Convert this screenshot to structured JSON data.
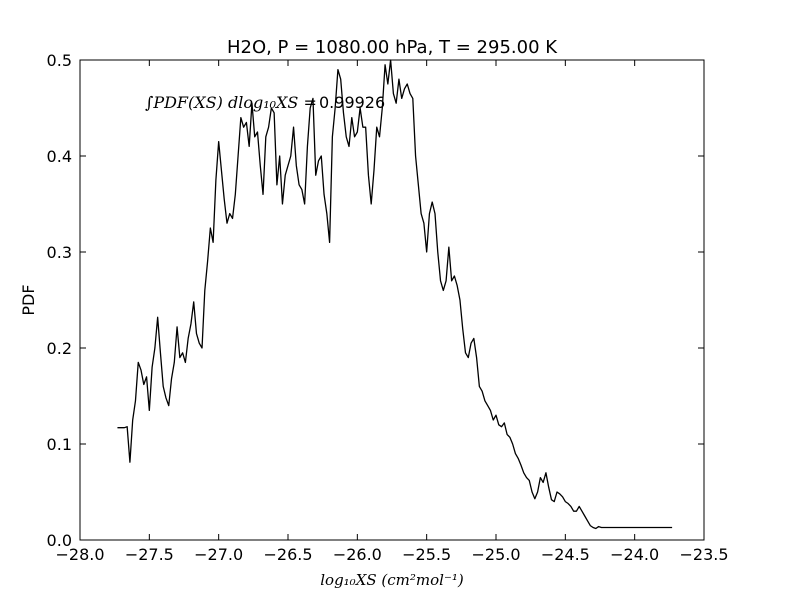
{
  "chart_data": {
    "type": "line",
    "title": "H2O, P = 1080.00 hPa, T = 295.00 K",
    "xlabel": "log₁₀XS (cm²mol⁻¹)",
    "ylabel": "PDF",
    "xlim": [
      -28.0,
      -23.5
    ],
    "ylim": [
      0.0,
      0.5
    ],
    "xticks": [
      -28.0,
      -27.5,
      -27.0,
      -26.5,
      -26.0,
      -25.5,
      -25.0,
      -24.5,
      -24.0,
      -23.5
    ],
    "xtick_labels": [
      "−28.0",
      "−27.5",
      "−27.0",
      "−26.5",
      "−26.0",
      "−25.5",
      "−25.0",
      "−24.5",
      "−24.0",
      "−23.5"
    ],
    "yticks": [
      0.0,
      0.1,
      0.2,
      0.3,
      0.4,
      0.5
    ],
    "ytick_labels": [
      "0.0",
      "0.1",
      "0.2",
      "0.3",
      "0.4",
      "0.5"
    ],
    "grid": false,
    "color": "#000000",
    "annotation": {
      "text_math": "∫PDF(XS) dlog₁₀XS =",
      "value": "0.99926"
    },
    "series": [
      {
        "values": [
          [
            -27.73,
            0.117
          ],
          [
            -27.68,
            0.117
          ],
          [
            -27.66,
            0.118
          ],
          [
            -27.64,
            0.081
          ],
          [
            -27.62,
            0.125
          ],
          [
            -27.6,
            0.145
          ],
          [
            -27.58,
            0.185
          ],
          [
            -27.56,
            0.177
          ],
          [
            -27.54,
            0.162
          ],
          [
            -27.52,
            0.17
          ],
          [
            -27.5,
            0.135
          ],
          [
            -27.48,
            0.18
          ],
          [
            -27.46,
            0.2
          ],
          [
            -27.44,
            0.232
          ],
          [
            -27.42,
            0.195
          ],
          [
            -27.4,
            0.16
          ],
          [
            -27.38,
            0.148
          ],
          [
            -27.36,
            0.14
          ],
          [
            -27.34,
            0.168
          ],
          [
            -27.32,
            0.185
          ],
          [
            -27.3,
            0.222
          ],
          [
            -27.28,
            0.19
          ],
          [
            -27.26,
            0.195
          ],
          [
            -27.24,
            0.185
          ],
          [
            -27.22,
            0.21
          ],
          [
            -27.2,
            0.225
          ],
          [
            -27.18,
            0.248
          ],
          [
            -27.16,
            0.215
          ],
          [
            -27.14,
            0.205
          ],
          [
            -27.12,
            0.2
          ],
          [
            -27.1,
            0.26
          ],
          [
            -27.08,
            0.29
          ],
          [
            -27.06,
            0.325
          ],
          [
            -27.04,
            0.31
          ],
          [
            -27.02,
            0.375
          ],
          [
            -27.0,
            0.415
          ],
          [
            -26.98,
            0.385
          ],
          [
            -26.96,
            0.355
          ],
          [
            -26.94,
            0.33
          ],
          [
            -26.92,
            0.34
          ],
          [
            -26.9,
            0.335
          ],
          [
            -26.88,
            0.36
          ],
          [
            -26.86,
            0.4
          ],
          [
            -26.84,
            0.44
          ],
          [
            -26.82,
            0.43
          ],
          [
            -26.8,
            0.435
          ],
          [
            -26.78,
            0.41
          ],
          [
            -26.76,
            0.455
          ],
          [
            -26.74,
            0.42
          ],
          [
            -26.72,
            0.425
          ],
          [
            -26.7,
            0.39
          ],
          [
            -26.68,
            0.36
          ],
          [
            -26.66,
            0.42
          ],
          [
            -26.64,
            0.43
          ],
          [
            -26.62,
            0.45
          ],
          [
            -26.6,
            0.445
          ],
          [
            -26.58,
            0.37
          ],
          [
            -26.56,
            0.4
          ],
          [
            -26.54,
            0.35
          ],
          [
            -26.52,
            0.38
          ],
          [
            -26.5,
            0.39
          ],
          [
            -26.48,
            0.4
          ],
          [
            -26.46,
            0.43
          ],
          [
            -26.44,
            0.39
          ],
          [
            -26.42,
            0.37
          ],
          [
            -26.4,
            0.365
          ],
          [
            -26.38,
            0.35
          ],
          [
            -26.36,
            0.41
          ],
          [
            -26.34,
            0.45
          ],
          [
            -26.32,
            0.46
          ],
          [
            -26.3,
            0.38
          ],
          [
            -26.28,
            0.395
          ],
          [
            -26.26,
            0.4
          ],
          [
            -26.24,
            0.36
          ],
          [
            -26.22,
            0.34
          ],
          [
            -26.2,
            0.31
          ],
          [
            -26.18,
            0.42
          ],
          [
            -26.16,
            0.45
          ],
          [
            -26.14,
            0.49
          ],
          [
            -26.12,
            0.48
          ],
          [
            -26.1,
            0.445
          ],
          [
            -26.08,
            0.42
          ],
          [
            -26.06,
            0.41
          ],
          [
            -26.04,
            0.44
          ],
          [
            -26.02,
            0.42
          ],
          [
            -26.0,
            0.425
          ],
          [
            -25.98,
            0.45
          ],
          [
            -25.96,
            0.43
          ],
          [
            -25.94,
            0.43
          ],
          [
            -25.92,
            0.38
          ],
          [
            -25.9,
            0.35
          ],
          [
            -25.88,
            0.385
          ],
          [
            -25.86,
            0.43
          ],
          [
            -25.84,
            0.42
          ],
          [
            -25.82,
            0.45
          ],
          [
            -25.8,
            0.495
          ],
          [
            -25.78,
            0.475
          ],
          [
            -25.76,
            0.5
          ],
          [
            -25.74,
            0.465
          ],
          [
            -25.72,
            0.455
          ],
          [
            -25.7,
            0.48
          ],
          [
            -25.68,
            0.46
          ],
          [
            -25.66,
            0.47
          ],
          [
            -25.64,
            0.475
          ],
          [
            -25.62,
            0.465
          ],
          [
            -25.6,
            0.46
          ],
          [
            -25.58,
            0.4
          ],
          [
            -25.56,
            0.37
          ],
          [
            -25.54,
            0.34
          ],
          [
            -25.52,
            0.33
          ],
          [
            -25.5,
            0.3
          ],
          [
            -25.48,
            0.34
          ],
          [
            -25.46,
            0.352
          ],
          [
            -25.44,
            0.34
          ],
          [
            -25.42,
            0.3
          ],
          [
            -25.4,
            0.27
          ],
          [
            -25.38,
            0.26
          ],
          [
            -25.36,
            0.27
          ],
          [
            -25.34,
            0.305
          ],
          [
            -25.32,
            0.27
          ],
          [
            -25.3,
            0.275
          ],
          [
            -25.28,
            0.265
          ],
          [
            -25.26,
            0.25
          ],
          [
            -25.24,
            0.22
          ],
          [
            -25.22,
            0.195
          ],
          [
            -25.2,
            0.19
          ],
          [
            -25.18,
            0.205
          ],
          [
            -25.16,
            0.21
          ],
          [
            -25.14,
            0.19
          ],
          [
            -25.12,
            0.16
          ],
          [
            -25.1,
            0.155
          ],
          [
            -25.08,
            0.145
          ],
          [
            -25.06,
            0.14
          ],
          [
            -25.04,
            0.135
          ],
          [
            -25.02,
            0.125
          ],
          [
            -25.0,
            0.13
          ],
          [
            -24.98,
            0.12
          ],
          [
            -24.96,
            0.118
          ],
          [
            -24.94,
            0.122
          ],
          [
            -24.92,
            0.11
          ],
          [
            -24.9,
            0.107
          ],
          [
            -24.88,
            0.1
          ],
          [
            -24.86,
            0.09
          ],
          [
            -24.84,
            0.085
          ],
          [
            -24.82,
            0.078
          ],
          [
            -24.8,
            0.07
          ],
          [
            -24.78,
            0.065
          ],
          [
            -24.76,
            0.062
          ],
          [
            -24.74,
            0.05
          ],
          [
            -24.72,
            0.043
          ],
          [
            -24.7,
            0.05
          ],
          [
            -24.68,
            0.065
          ],
          [
            -24.66,
            0.06
          ],
          [
            -24.64,
            0.07
          ],
          [
            -24.62,
            0.055
          ],
          [
            -24.6,
            0.042
          ],
          [
            -24.58,
            0.04
          ],
          [
            -24.56,
            0.05
          ],
          [
            -24.54,
            0.048
          ],
          [
            -24.52,
            0.045
          ],
          [
            -24.5,
            0.04
          ],
          [
            -24.48,
            0.038
          ],
          [
            -24.46,
            0.035
          ],
          [
            -24.44,
            0.03
          ],
          [
            -24.42,
            0.03
          ],
          [
            -24.4,
            0.035
          ],
          [
            -24.38,
            0.03
          ],
          [
            -24.36,
            0.025
          ],
          [
            -24.34,
            0.02
          ],
          [
            -24.32,
            0.015
          ],
          [
            -24.3,
            0.013
          ],
          [
            -24.28,
            0.012
          ],
          [
            -24.26,
            0.014
          ],
          [
            -24.24,
            0.013
          ],
          [
            -24.22,
            0.013
          ],
          [
            -23.73,
            0.013
          ]
        ]
      }
    ]
  }
}
